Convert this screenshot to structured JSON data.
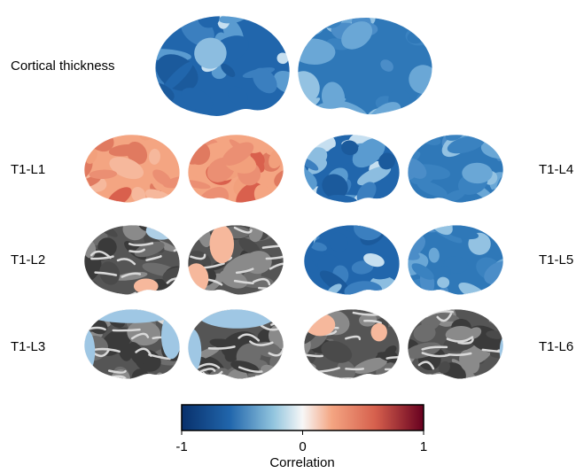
{
  "row_labels": {
    "top": "Cortical thickness",
    "left": [
      "T1-L1",
      "T1-L2",
      "T1-L3"
    ],
    "right": [
      "T1-L4",
      "T1-L5",
      "T1-L6"
    ]
  },
  "colorbar": {
    "title": "Correlation",
    "lim": [
      -1,
      1
    ],
    "ticks": [
      -1,
      0,
      1
    ]
  }
}
